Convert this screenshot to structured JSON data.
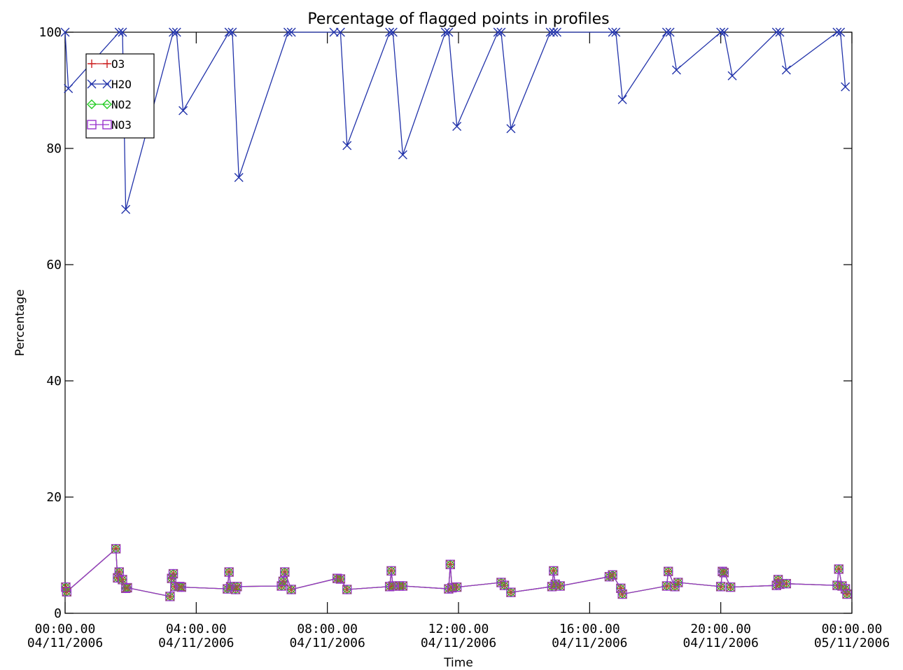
{
  "chart_data": {
    "type": "line",
    "title": "Percentage of flagged points in profiles",
    "xlabel": "Time",
    "ylabel": "Percentage",
    "xlim_hours": [
      0,
      24
    ],
    "ylim": [
      0,
      100
    ],
    "x_ticks": [
      {
        "hour": 0,
        "line1": "00:00.00",
        "line2": "04/11/2006"
      },
      {
        "hour": 4,
        "line1": "04:00.00",
        "line2": "04/11/2006"
      },
      {
        "hour": 8,
        "line1": "08:00.00",
        "line2": "04/11/2006"
      },
      {
        "hour": 12,
        "line1": "12:00.00",
        "line2": "04/11/2006"
      },
      {
        "hour": 16,
        "line1": "16:00.00",
        "line2": "04/11/2006"
      },
      {
        "hour": 20,
        "line1": "20:00.00",
        "line2": "04/11/2006"
      },
      {
        "hour": 24,
        "line1": "00:00.00",
        "line2": "05/11/2006"
      }
    ],
    "y_ticks": [
      0,
      20,
      40,
      60,
      80,
      100
    ],
    "grid": false,
    "legend_position": "top-left",
    "series": [
      {
        "name": "O3",
        "color": "#cc2222",
        "marker": "plus",
        "x": [
          0.02,
          0.05,
          1.55,
          1.6,
          1.65,
          1.75,
          1.85,
          1.9,
          3.2,
          3.25,
          3.3,
          3.35,
          3.5,
          3.55,
          4.95,
          5.0,
          5.05,
          5.2,
          5.25,
          6.6,
          6.65,
          6.7,
          6.9,
          8.3,
          8.4,
          8.6,
          9.9,
          9.95,
          10.0,
          10.2,
          10.3,
          11.7,
          11.75,
          11.8,
          11.95,
          13.3,
          13.4,
          13.6,
          14.85,
          14.9,
          14.95,
          15.1,
          16.6,
          16.7,
          16.95,
          17.0,
          18.35,
          18.4,
          18.6,
          18.7,
          20.0,
          20.05,
          20.1,
          20.3,
          21.7,
          21.75,
          21.8,
          22.0,
          23.55,
          23.6,
          23.7,
          23.8,
          23.85
        ],
        "values": [
          4.5,
          3.7,
          11.1,
          6.1,
          7.1,
          5.8,
          4.3,
          4.4,
          2.9,
          6.0,
          6.8,
          4.6,
          4.6,
          4.5,
          4.2,
          7.1,
          4.6,
          4.1,
          4.6,
          4.7,
          5.5,
          7.1,
          4.1,
          6.0,
          5.9,
          4.1,
          4.6,
          7.3,
          4.7,
          4.7,
          4.7,
          4.2,
          8.4,
          4.4,
          4.5,
          5.3,
          4.8,
          3.6,
          4.6,
          7.3,
          5.0,
          4.7,
          6.3,
          6.6,
          4.3,
          3.3,
          4.7,
          7.2,
          4.6,
          5.3,
          4.6,
          7.2,
          7.0,
          4.5,
          4.8,
          5.8,
          5.0,
          5.1,
          4.8,
          7.6,
          4.7,
          4.2,
          3.3
        ]
      },
      {
        "name": "H2O",
        "color": "#2233aa",
        "marker": "x",
        "x": [
          0.0,
          0.1,
          1.65,
          1.75,
          1.85,
          3.3,
          3.4,
          3.6,
          5.0,
          5.1,
          5.3,
          6.8,
          6.9,
          8.2,
          8.4,
          8.6,
          9.9,
          10.0,
          10.3,
          11.6,
          11.7,
          11.95,
          13.2,
          13.3,
          13.6,
          14.8,
          14.9,
          15.0,
          16.7,
          16.8,
          17.0,
          18.35,
          18.45,
          18.65,
          20.0,
          20.1,
          20.35,
          21.7,
          21.8,
          22.0,
          23.55,
          23.65,
          23.8
        ],
        "values": [
          100.0,
          90.3,
          100.0,
          100.0,
          69.5,
          100.0,
          100.0,
          86.5,
          100.0,
          100.0,
          75.0,
          100.0,
          100.0,
          100.0,
          100.0,
          80.5,
          100.0,
          100.0,
          78.9,
          100.0,
          100.0,
          83.8,
          100.0,
          100.0,
          83.4,
          100.0,
          100.0,
          100.0,
          100.0,
          100.0,
          88.4,
          100.0,
          100.0,
          93.5,
          100.0,
          100.0,
          92.5,
          100.0,
          100.0,
          93.5,
          100.0,
          100.0,
          90.6
        ]
      },
      {
        "name": "NO2",
        "color": "#22cc22",
        "marker": "diamond",
        "x": [
          0.02,
          0.05,
          1.55,
          1.6,
          1.65,
          1.75,
          1.85,
          1.9,
          3.2,
          3.25,
          3.3,
          3.35,
          3.5,
          3.55,
          4.95,
          5.0,
          5.05,
          5.2,
          5.25,
          6.6,
          6.65,
          6.7,
          6.9,
          8.3,
          8.4,
          8.6,
          9.9,
          9.95,
          10.0,
          10.2,
          10.3,
          11.7,
          11.75,
          11.8,
          11.95,
          13.3,
          13.4,
          13.6,
          14.85,
          14.9,
          14.95,
          15.1,
          16.6,
          16.7,
          16.95,
          17.0,
          18.35,
          18.4,
          18.6,
          18.7,
          20.0,
          20.05,
          20.1,
          20.3,
          21.7,
          21.75,
          21.8,
          22.0,
          23.55,
          23.6,
          23.7,
          23.8,
          23.85
        ],
        "values": [
          4.5,
          3.7,
          11.1,
          6.1,
          7.1,
          5.8,
          4.3,
          4.4,
          2.9,
          6.0,
          6.8,
          4.6,
          4.6,
          4.5,
          4.2,
          7.1,
          4.6,
          4.1,
          4.6,
          4.7,
          5.5,
          7.1,
          4.1,
          6.0,
          5.9,
          4.1,
          4.6,
          7.3,
          4.7,
          4.7,
          4.7,
          4.2,
          8.4,
          4.4,
          4.5,
          5.3,
          4.8,
          3.6,
          4.6,
          7.3,
          5.0,
          4.7,
          6.3,
          6.6,
          4.3,
          3.3,
          4.7,
          7.2,
          4.6,
          5.3,
          4.6,
          7.2,
          7.0,
          4.5,
          4.8,
          5.8,
          5.0,
          5.1,
          4.8,
          7.6,
          4.7,
          4.2,
          3.3
        ]
      },
      {
        "name": "NO3",
        "color": "#9933cc",
        "marker": "square",
        "x": [
          0.02,
          0.05,
          1.55,
          1.6,
          1.65,
          1.75,
          1.85,
          1.9,
          3.2,
          3.25,
          3.3,
          3.35,
          3.5,
          3.55,
          4.95,
          5.0,
          5.05,
          5.2,
          5.25,
          6.6,
          6.65,
          6.7,
          6.9,
          8.3,
          8.4,
          8.6,
          9.9,
          9.95,
          10.0,
          10.2,
          10.3,
          11.7,
          11.75,
          11.8,
          11.95,
          13.3,
          13.4,
          13.6,
          14.85,
          14.9,
          14.95,
          15.1,
          16.6,
          16.7,
          16.95,
          17.0,
          18.35,
          18.4,
          18.6,
          18.7,
          20.0,
          20.05,
          20.1,
          20.3,
          21.7,
          21.75,
          21.8,
          22.0,
          23.55,
          23.6,
          23.7,
          23.8,
          23.85
        ],
        "values": [
          4.5,
          3.7,
          11.1,
          6.1,
          7.1,
          5.8,
          4.3,
          4.4,
          2.9,
          6.0,
          6.8,
          4.6,
          4.6,
          4.5,
          4.2,
          7.1,
          4.6,
          4.1,
          4.6,
          4.7,
          5.5,
          7.1,
          4.1,
          6.0,
          5.9,
          4.1,
          4.6,
          7.3,
          4.7,
          4.7,
          4.7,
          4.2,
          8.4,
          4.4,
          4.5,
          5.3,
          4.8,
          3.6,
          4.6,
          7.3,
          5.0,
          4.7,
          6.3,
          6.6,
          4.3,
          3.3,
          4.7,
          7.2,
          4.6,
          5.3,
          4.6,
          7.2,
          7.0,
          4.5,
          4.8,
          5.8,
          5.0,
          5.1,
          4.8,
          7.6,
          4.7,
          4.2,
          3.3
        ]
      }
    ]
  }
}
